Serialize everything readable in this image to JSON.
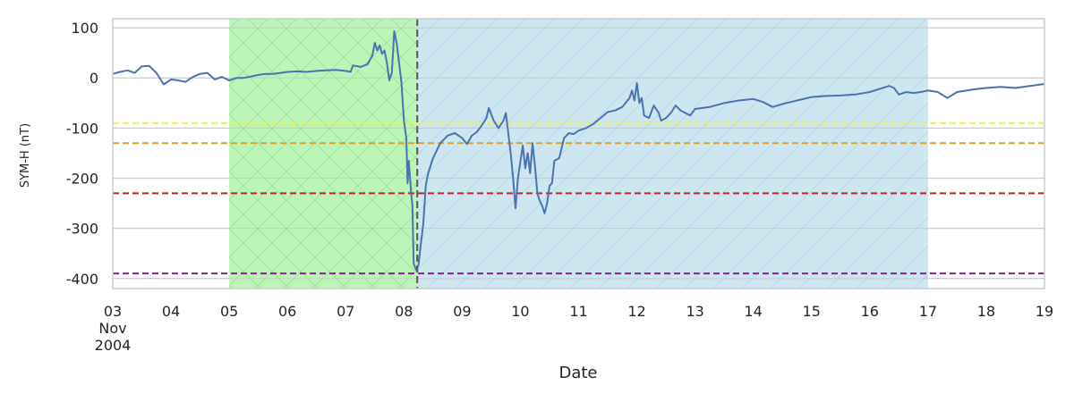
{
  "chart_data": {
    "type": "line",
    "title": "",
    "xlabel": "Date",
    "ylabel": "SYM-H (nT)",
    "xlim": [
      "2004-11-03T00:00",
      "2004-11-19T00:00"
    ],
    "ylim": [
      -420,
      118
    ],
    "x_tick_labels": [
      {
        "date": "2004-11-03",
        "lines": [
          "03",
          "Nov",
          "2004"
        ]
      },
      {
        "date": "2004-11-04",
        "lines": [
          "04"
        ]
      },
      {
        "date": "2004-11-05",
        "lines": [
          "05"
        ]
      },
      {
        "date": "2004-11-06",
        "lines": [
          "06"
        ]
      },
      {
        "date": "2004-11-07",
        "lines": [
          "07"
        ]
      },
      {
        "date": "2004-11-08",
        "lines": [
          "08"
        ]
      },
      {
        "date": "2004-11-09",
        "lines": [
          "09"
        ]
      },
      {
        "date": "2004-11-10",
        "lines": [
          "10"
        ]
      },
      {
        "date": "2004-11-11",
        "lines": [
          "11"
        ]
      },
      {
        "date": "2004-11-12",
        "lines": [
          "12"
        ]
      },
      {
        "date": "2004-11-13",
        "lines": [
          "13"
        ]
      },
      {
        "date": "2004-11-14",
        "lines": [
          "14"
        ]
      },
      {
        "date": "2004-11-15",
        "lines": [
          "15"
        ]
      },
      {
        "date": "2004-11-16",
        "lines": [
          "16"
        ]
      },
      {
        "date": "2004-11-17",
        "lines": [
          "17"
        ]
      },
      {
        "date": "2004-11-18",
        "lines": [
          "18"
        ]
      },
      {
        "date": "2004-11-19",
        "lines": [
          "19"
        ]
      }
    ],
    "y_ticks": [
      100,
      0,
      -100,
      -200,
      -300,
      -400
    ],
    "y_tick_labels": [
      "100",
      "0",
      "-100",
      "-200",
      "-300",
      "-400"
    ],
    "grid": true,
    "shaded_regions": [
      {
        "start": "2004-11-05T00:00",
        "end": "2004-11-08T05:30",
        "color": "#bdf5b9",
        "hatch": "cross",
        "hatch_color": "#96e896"
      },
      {
        "start": "2004-11-08T05:30",
        "end": "2004-11-17T00:00",
        "color": "#cde6f0",
        "hatch": "diagonal",
        "hatch_color": "#b2dcea"
      }
    ],
    "vertical_lines": [
      {
        "x": "2004-11-08T05:30",
        "color": "#555555",
        "style": "dashed"
      }
    ],
    "horizontal_lines": [
      {
        "y": -90,
        "color": "#f2f244",
        "style": "dashed"
      },
      {
        "y": -130,
        "color": "#dba22b",
        "style": "dashed"
      },
      {
        "y": -230,
        "color": "#b52a28",
        "style": "dashed"
      },
      {
        "y": -390,
        "color": "#8b1d96",
        "style": "dashed"
      }
    ],
    "series": [
      {
        "color": "#4c72b0",
        "points": [
          [
            "2004-11-03T00:00",
            8
          ],
          [
            "2004-11-03T03:00",
            12
          ],
          [
            "2004-11-03T06:00",
            15
          ],
          [
            "2004-11-03T09:00",
            10
          ],
          [
            "2004-11-03T12:00",
            23
          ],
          [
            "2004-11-03T15:00",
            24
          ],
          [
            "2004-11-03T18:00",
            10
          ],
          [
            "2004-11-03T21:00",
            -13
          ],
          [
            "2004-11-04T00:00",
            -3
          ],
          [
            "2004-11-04T03:00",
            -5
          ],
          [
            "2004-11-04T06:00",
            -8
          ],
          [
            "2004-11-04T09:00",
            2
          ],
          [
            "2004-11-04T12:00",
            8
          ],
          [
            "2004-11-04T15:00",
            10
          ],
          [
            "2004-11-04T18:00",
            -3
          ],
          [
            "2004-11-04T21:00",
            2
          ],
          [
            "2004-11-05T00:00",
            -5
          ],
          [
            "2004-11-05T03:00",
            0
          ],
          [
            "2004-11-05T06:00",
            0
          ],
          [
            "2004-11-05T09:00",
            3
          ],
          [
            "2004-11-05T12:00",
            6
          ],
          [
            "2004-11-05T15:00",
            8
          ],
          [
            "2004-11-05T18:00",
            8
          ],
          [
            "2004-11-05T21:00",
            10
          ],
          [
            "2004-11-06T00:00",
            12
          ],
          [
            "2004-11-06T04:00",
            13
          ],
          [
            "2004-11-06T08:00",
            12
          ],
          [
            "2004-11-06T12:00",
            14
          ],
          [
            "2004-11-06T16:00",
            15
          ],
          [
            "2004-11-06T20:00",
            16
          ],
          [
            "2004-11-07T00:00",
            14
          ],
          [
            "2004-11-07T02:00",
            12
          ],
          [
            "2004-11-07T03:00",
            25
          ],
          [
            "2004-11-07T06:00",
            22
          ],
          [
            "2004-11-07T09:00",
            27
          ],
          [
            "2004-11-07T11:00",
            45
          ],
          [
            "2004-11-07T12:00",
            70
          ],
          [
            "2004-11-07T13:00",
            55
          ],
          [
            "2004-11-07T14:00",
            65
          ],
          [
            "2004-11-07T15:00",
            48
          ],
          [
            "2004-11-07T16:00",
            55
          ],
          [
            "2004-11-07T17:00",
            30
          ],
          [
            "2004-11-07T18:00",
            -5
          ],
          [
            "2004-11-07T19:00",
            10
          ],
          [
            "2004-11-07T20:00",
            93
          ],
          [
            "2004-11-07T21:00",
            70
          ],
          [
            "2004-11-07T22:00",
            30
          ],
          [
            "2004-11-07T23:00",
            -10
          ],
          [
            "2004-11-08T00:00",
            -85
          ],
          [
            "2004-11-08T01:00",
            -120
          ],
          [
            "2004-11-08T01:30",
            -210
          ],
          [
            "2004-11-08T02:00",
            -165
          ],
          [
            "2004-11-08T03:00",
            -230
          ],
          [
            "2004-11-08T03:30",
            -255
          ],
          [
            "2004-11-08T04:00",
            -370
          ],
          [
            "2004-11-08T05:00",
            -383
          ],
          [
            "2004-11-08T06:00",
            -373
          ],
          [
            "2004-11-08T07:00",
            -330
          ],
          [
            "2004-11-08T08:00",
            -290
          ],
          [
            "2004-11-08T09:00",
            -215
          ],
          [
            "2004-11-08T10:00",
            -190
          ],
          [
            "2004-11-08T12:00",
            -160
          ],
          [
            "2004-11-08T15:00",
            -130
          ],
          [
            "2004-11-08T18:00",
            -115
          ],
          [
            "2004-11-08T21:00",
            -110
          ],
          [
            "2004-11-09T00:00",
            -120
          ],
          [
            "2004-11-09T02:00",
            -132
          ],
          [
            "2004-11-09T04:00",
            -115
          ],
          [
            "2004-11-09T06:00",
            -108
          ],
          [
            "2004-11-09T08:00",
            -95
          ],
          [
            "2004-11-09T10:00",
            -80
          ],
          [
            "2004-11-09T11:00",
            -60
          ],
          [
            "2004-11-09T13:00",
            -85
          ],
          [
            "2004-11-09T15:00",
            -100
          ],
          [
            "2004-11-09T17:00",
            -85
          ],
          [
            "2004-11-09T18:00",
            -70
          ],
          [
            "2004-11-09T19:00",
            -110
          ],
          [
            "2004-11-09T20:00",
            -150
          ],
          [
            "2004-11-09T21:00",
            -200
          ],
          [
            "2004-11-09T22:00",
            -260
          ],
          [
            "2004-11-09T23:00",
            -200
          ],
          [
            "2004-11-10T01:00",
            -135
          ],
          [
            "2004-11-10T02:00",
            -180
          ],
          [
            "2004-11-10T03:00",
            -150
          ],
          [
            "2004-11-10T04:00",
            -190
          ],
          [
            "2004-11-10T05:00",
            -130
          ],
          [
            "2004-11-10T06:00",
            -175
          ],
          [
            "2004-11-10T07:00",
            -230
          ],
          [
            "2004-11-10T08:00",
            -245
          ],
          [
            "2004-11-10T09:00",
            -255
          ],
          [
            "2004-11-10T10:00",
            -270
          ],
          [
            "2004-11-10T11:00",
            -250
          ],
          [
            "2004-11-10T12:00",
            -215
          ],
          [
            "2004-11-10T13:00",
            -210
          ],
          [
            "2004-11-10T14:00",
            -165
          ],
          [
            "2004-11-10T16:00",
            -160
          ],
          [
            "2004-11-10T18:00",
            -120
          ],
          [
            "2004-11-10T20:00",
            -110
          ],
          [
            "2004-11-10T22:00",
            -112
          ],
          [
            "2004-11-11T00:00",
            -105
          ],
          [
            "2004-11-11T03:00",
            -100
          ],
          [
            "2004-11-11T06:00",
            -92
          ],
          [
            "2004-11-11T09:00",
            -80
          ],
          [
            "2004-11-11T12:00",
            -68
          ],
          [
            "2004-11-11T15:00",
            -65
          ],
          [
            "2004-11-11T18:00",
            -58
          ],
          [
            "2004-11-11T21:00",
            -40
          ],
          [
            "2004-11-11T22:00",
            -25
          ],
          [
            "2004-11-11T23:00",
            -45
          ],
          [
            "2004-11-12T00:00",
            -10
          ],
          [
            "2004-11-12T01:00",
            -50
          ],
          [
            "2004-11-12T02:00",
            -40
          ],
          [
            "2004-11-12T03:00",
            -75
          ],
          [
            "2004-11-12T05:00",
            -80
          ],
          [
            "2004-11-12T07:00",
            -55
          ],
          [
            "2004-11-12T09:00",
            -70
          ],
          [
            "2004-11-12T10:00",
            -85
          ],
          [
            "2004-11-12T12:00",
            -80
          ],
          [
            "2004-11-12T14:00",
            -70
          ],
          [
            "2004-11-12T16:00",
            -55
          ],
          [
            "2004-11-12T18:00",
            -65
          ],
          [
            "2004-11-12T20:00",
            -70
          ],
          [
            "2004-11-12T22:00",
            -75
          ],
          [
            "2004-11-13T00:00",
            -62
          ],
          [
            "2004-11-13T06:00",
            -58
          ],
          [
            "2004-11-13T12:00",
            -50
          ],
          [
            "2004-11-13T18:00",
            -45
          ],
          [
            "2004-11-14T00:00",
            -42
          ],
          [
            "2004-11-14T04:00",
            -48
          ],
          [
            "2004-11-14T08:00",
            -58
          ],
          [
            "2004-11-14T12:00",
            -52
          ],
          [
            "2004-11-14T18:00",
            -45
          ],
          [
            "2004-11-15T00:00",
            -38
          ],
          [
            "2004-11-15T06:00",
            -36
          ],
          [
            "2004-11-15T12:00",
            -35
          ],
          [
            "2004-11-15T18:00",
            -33
          ],
          [
            "2004-11-16T00:00",
            -28
          ],
          [
            "2004-11-16T04:00",
            -22
          ],
          [
            "2004-11-16T08:00",
            -16
          ],
          [
            "2004-11-16T10:00",
            -20
          ],
          [
            "2004-11-16T12:00",
            -33
          ],
          [
            "2004-11-16T15:00",
            -28
          ],
          [
            "2004-11-16T18:00",
            -30
          ],
          [
            "2004-11-16T21:00",
            -28
          ],
          [
            "2004-11-17T00:00",
            -25
          ],
          [
            "2004-11-17T04:00",
            -28
          ],
          [
            "2004-11-17T08:00",
            -40
          ],
          [
            "2004-11-17T12:00",
            -28
          ],
          [
            "2004-11-17T16:00",
            -25
          ],
          [
            "2004-11-17T20:00",
            -22
          ],
          [
            "2004-11-18T00:00",
            -20
          ],
          [
            "2004-11-18T06:00",
            -18
          ],
          [
            "2004-11-18T12:00",
            -20
          ],
          [
            "2004-11-18T18:00",
            -16
          ],
          [
            "2004-11-19T00:00",
            -12
          ]
        ]
      }
    ]
  }
}
